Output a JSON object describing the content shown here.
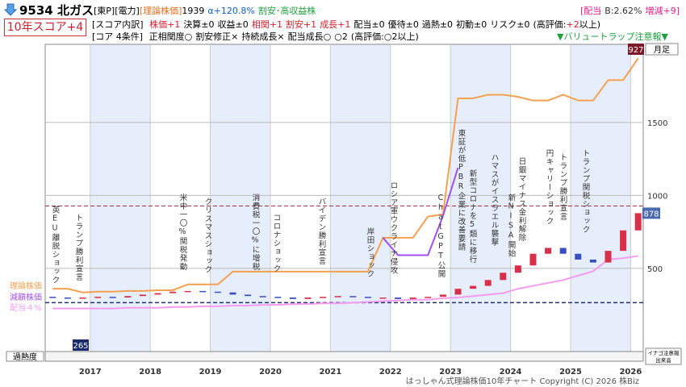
{
  "header": {
    "code_name": "9534 北ガス",
    "market": "[東P][電力]",
    "theory_label": "[理論株価]",
    "theory_value": "1939",
    "alpha": "α+120.8%",
    "tag": "割安･高収益株",
    "dividend_label": "[配当",
    "dividend": "B:2.62%",
    "change": "増減+9]",
    "score": "10年スコア+4",
    "score_title": "[スコア内訳]",
    "score_items": [
      "株価+1",
      "決算±0",
      "収益±0",
      "相関+1",
      "割安+1",
      "成長+1",
      "配当±0",
      "優待±0",
      "過熱±0",
      "初動±0",
      "リスク±0"
    ],
    "score_note_pre": "(高評価:",
    "score_note_val": "+2",
    "score_note_post": "以上)",
    "core_title": "[コア 4条件]",
    "core_items": [
      "正相関度○",
      "割安修正×",
      "持続成長×",
      "配当成長○"
    ],
    "core_total": "○2",
    "core_note": "(高評価:○2以上)",
    "warning": "▼バリュートラップ注意報▼"
  },
  "chart_data": {
    "type": "candlestick",
    "period": "月足",
    "categories": [
      null,
      null,
      null,
      "2017",
      null,
      null,
      null,
      "2018",
      null,
      null,
      null,
      "2019",
      null,
      null,
      null,
      "2020",
      null,
      null,
      null,
      "2021",
      null,
      null,
      null,
      "2022",
      null,
      null,
      null,
      "2023",
      null,
      null,
      null,
      "2024",
      null,
      null,
      null,
      "2025",
      null,
      null,
      null,
      "2026"
    ],
    "price": {
      "up_color": "#d8304a",
      "down_color": "#3a4fc0",
      "open": [
        305,
        300,
        295,
        300,
        305,
        300,
        310,
        320,
        330,
        340,
        345,
        340,
        335,
        320,
        310,
        305,
        300,
        290,
        300,
        305,
        310,
        305,
        300,
        300,
        290,
        300,
        305,
        320,
        360,
        380,
        420,
        470,
        520,
        600,
        640,
        600,
        560,
        540,
        620,
        760
      ],
      "close": [
        300,
        295,
        300,
        305,
        300,
        310,
        320,
        330,
        340,
        345,
        340,
        335,
        320,
        310,
        305,
        300,
        290,
        300,
        305,
        310,
        305,
        300,
        300,
        290,
        300,
        305,
        320,
        360,
        380,
        420,
        470,
        520,
        600,
        640,
        600,
        560,
        540,
        620,
        760,
        878
      ]
    },
    "series": [
      {
        "name": "理論株価",
        "color": "#f5a050",
        "values": [
          360,
          360,
          335,
          340,
          340,
          345,
          345,
          350,
          350,
          390,
          390,
          390,
          478,
          478,
          478,
          478,
          478,
          478,
          478,
          478,
          478,
          478,
          710,
          710,
          710,
          855,
          870,
          1665,
          1665,
          1690,
          1690,
          1675,
          1650,
          1650,
          1690,
          1650,
          1650,
          1790,
          1790,
          1939
        ]
      },
      {
        "name": "減額株価",
        "color": "#a050f0",
        "values": [
          null,
          null,
          null,
          null,
          null,
          null,
          null,
          null,
          null,
          null,
          null,
          null,
          null,
          null,
          null,
          null,
          null,
          null,
          null,
          null,
          null,
          null,
          710,
          590,
          590,
          590,
          860,
          1190,
          null,
          null,
          null,
          null,
          null,
          null,
          null,
          null,
          null,
          null,
          null,
          null
        ]
      },
      {
        "name": "配当４%",
        "color": "#f59cf0",
        "values": [
          225,
          225,
          225,
          225,
          225,
          230,
          230,
          230,
          235,
          235,
          240,
          240,
          245,
          245,
          250,
          250,
          255,
          255,
          260,
          260,
          265,
          270,
          275,
          280,
          285,
          285,
          295,
          300,
          310,
          320,
          330,
          360,
          380,
          400,
          420,
          450,
          480,
          560,
          570,
          585
        ]
      }
    ],
    "high_label": 927,
    "low_label": 265,
    "last_label": 878,
    "ylim": [
      -70,
      2035
    ],
    "yticks": [
      500,
      1000,
      1500
    ],
    "grid": true,
    "events": [
      "英EU離脱ショック",
      "トランプ勝利宣言",
      "米中一〇%関税発動",
      "クリスマスショック",
      "消費税一〇%に増税",
      "コロナショック",
      "バイデン勝利宣言",
      "岸田ショック",
      "ロシア軍ウクライナ侵攻",
      "ChatGPT公開",
      "東証が低PBR企業に改善要請",
      "新型コロナを5類に移行",
      "ハマスがイスラエル襲撃",
      "新NISA開始",
      "日銀マイナス金利解除",
      "円キャリーショック",
      "トランプ勝利宣言",
      "トランプ関税ショック"
    ],
    "overheat_label": "過熱度",
    "volume_labels": [
      "イナゴ注意報",
      "出来高"
    ],
    "footer": "はっしゃん式理論株価10年チャート Copyright (C) 2026 株Biz"
  }
}
